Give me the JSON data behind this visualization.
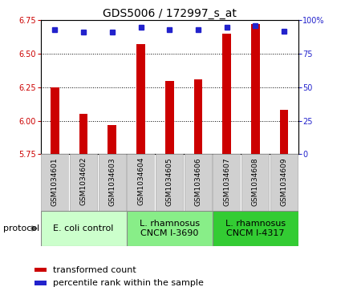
{
  "title": "GDS5006 / 172997_s_at",
  "samples": [
    "GSM1034601",
    "GSM1034602",
    "GSM1034603",
    "GSM1034604",
    "GSM1034605",
    "GSM1034606",
    "GSM1034607",
    "GSM1034608",
    "GSM1034609"
  ],
  "transformed_counts": [
    6.25,
    6.05,
    5.97,
    6.57,
    6.3,
    6.31,
    6.65,
    6.72,
    6.08
  ],
  "percentile_ranks": [
    93,
    91,
    91,
    95,
    93,
    93,
    95,
    96,
    92
  ],
  "ylim_left": [
    5.75,
    6.75
  ],
  "ylim_right": [
    0,
    100
  ],
  "yticks_left": [
    5.75,
    6.0,
    6.25,
    6.5,
    6.75
  ],
  "yticks_right": [
    0,
    25,
    50,
    75,
    100
  ],
  "ytick_labels_right": [
    "0",
    "25",
    "50",
    "75",
    "100%"
  ],
  "bar_color": "#cc0000",
  "dot_color": "#2222cc",
  "bg_color": "#ffffff",
  "plot_bg": "#ffffff",
  "sample_box_color": "#d0d0d0",
  "sample_box_edge": "#aaaaaa",
  "protocol_groups": [
    {
      "label": "E. coli control",
      "indices": [
        0,
        1,
        2
      ],
      "color": "#ccffcc"
    },
    {
      "label": "L. rhamnosus\nCNCM I-3690",
      "indices": [
        3,
        4,
        5
      ],
      "color": "#88ee88"
    },
    {
      "label": "L. rhamnosus\nCNCM I-4317",
      "indices": [
        6,
        7,
        8
      ],
      "color": "#33cc33"
    }
  ],
  "legend_items": [
    {
      "label": "transformed count",
      "color": "#cc0000"
    },
    {
      "label": "percentile rank within the sample",
      "color": "#2222cc"
    }
  ],
  "protocol_label": "protocol",
  "title_fontsize": 10,
  "tick_fontsize": 7,
  "sample_fontsize": 6.5,
  "legend_fontsize": 8,
  "proto_fontsize": 8,
  "bar_width": 0.3
}
